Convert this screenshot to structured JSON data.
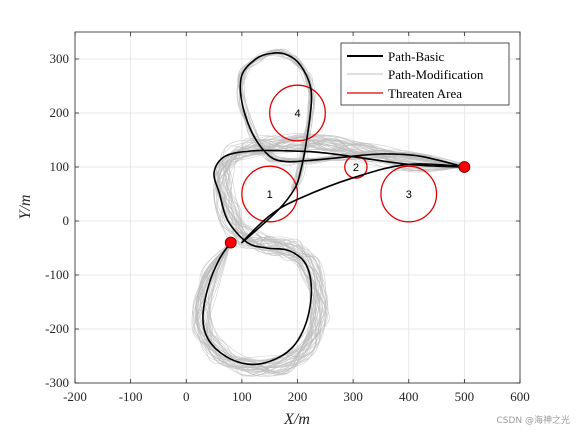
{
  "chart_data": {
    "type": "line",
    "xlabel": "X/m",
    "ylabel": "Y/m",
    "xlim": [
      -200,
      600
    ],
    "ylim": [
      -300,
      350
    ],
    "xticks": [
      -200,
      -100,
      0,
      100,
      200,
      300,
      400,
      500,
      600
    ],
    "yticks": [
      -300,
      -200,
      -100,
      0,
      100,
      200,
      300
    ],
    "grid": true,
    "legend_position": "top-right",
    "colors": {
      "basic": "#000000",
      "modification": "#bdbdbd",
      "threat": "#e00000",
      "endpoint": "#ff0000"
    },
    "series": [
      {
        "name": "Path-Basic",
        "x": [
          80,
          60,
          40,
          30,
          40,
          70,
          110,
          150,
          190,
          215,
          225,
          215,
          185,
          145,
          110,
          75,
          60,
          50,
          70,
          120,
          180,
          230,
          280,
          400,
          500,
          400,
          300,
          200,
          150,
          100,
          165,
          195,
          205,
          215,
          225,
          220,
          200,
          175,
          150,
          125,
          100,
          100,
          120,
          150,
          180,
          220,
          280,
          350,
          420,
          500
        ],
        "y": [
          -40,
          -70,
          -120,
          -180,
          -220,
          -250,
          -265,
          -260,
          -235,
          -190,
          -130,
          -80,
          -55,
          -50,
          -40,
          0,
          50,
          90,
          120,
          130,
          130,
          128,
          122,
          105,
          100,
          105,
          80,
          40,
          10,
          -40,
          20,
          60,
          90,
          140,
          220,
          260,
          295,
          310,
          310,
          300,
          270,
          220,
          160,
          120,
          110,
          112,
          118,
          124,
          120,
          100
        ]
      },
      {
        "name": "Path-Modification",
        "x": [
          80,
          40,
          30,
          60,
          110,
          170,
          220,
          240,
          225,
          190,
          150,
          110,
          80,
          65,
          80,
          130,
          200,
          260,
          320,
          400,
          500
        ],
        "y": [
          -40,
          -110,
          -190,
          -245,
          -270,
          -265,
          -230,
          -160,
          -90,
          -55,
          -45,
          -30,
          10,
          70,
          120,
          140,
          145,
          140,
          128,
          110,
          100
        ]
      }
    ],
    "threat_series_name": "Threaten Area",
    "threat_areas": [
      {
        "label": "1",
        "cx": 150,
        "cy": 50,
        "r": 50
      },
      {
        "label": "2",
        "cx": 305,
        "cy": 100,
        "r": 20
      },
      {
        "label": "3",
        "cx": 400,
        "cy": 50,
        "r": 50
      },
      {
        "label": "4",
        "cx": 200,
        "cy": 200,
        "r": 50
      }
    ],
    "endpoints": [
      {
        "x": 80,
        "y": -40
      },
      {
        "x": 500,
        "y": 100
      }
    ]
  },
  "watermark": "CSDN @海神之光"
}
